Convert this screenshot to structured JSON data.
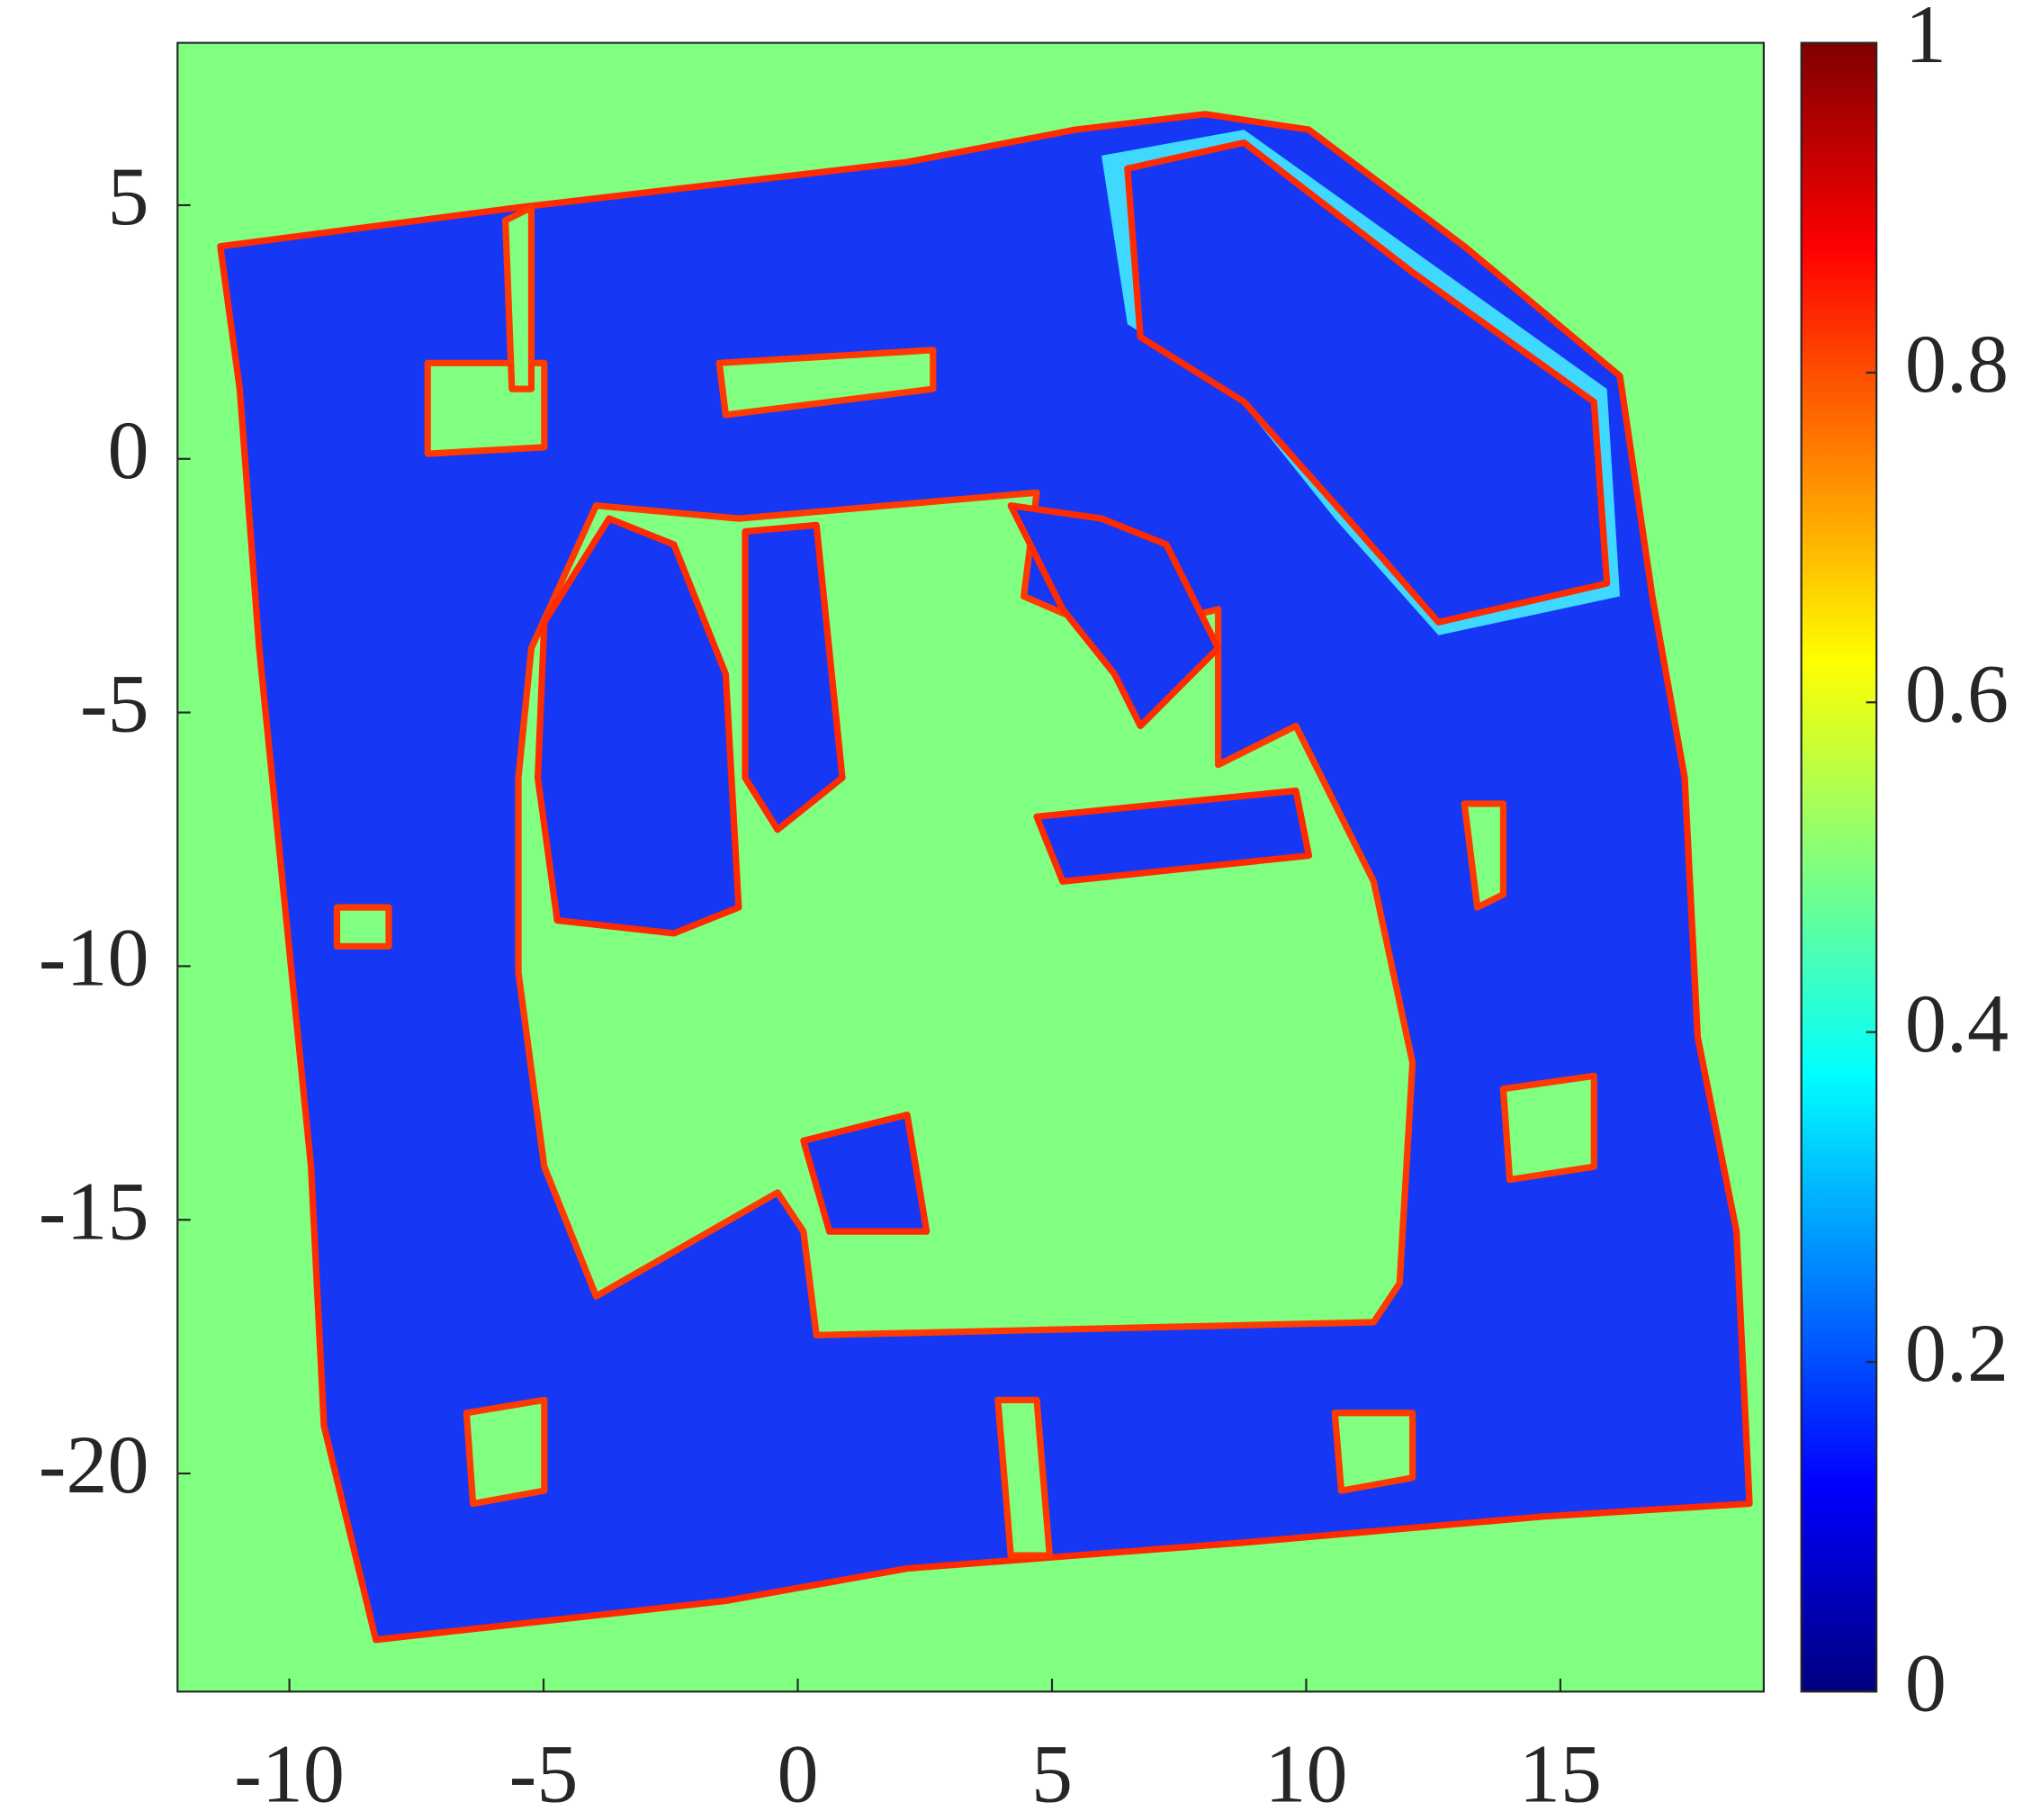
{
  "chart_data": {
    "type": "heatmap",
    "xlim": [
      -12.2,
      19
    ],
    "ylim": [
      -24.3,
      8.2
    ],
    "xticks": [
      -10,
      -5,
      0,
      5,
      10,
      15
    ],
    "yticks": [
      5,
      0,
      -5,
      -10,
      -15,
      -20
    ],
    "colorbar": {
      "colormap": "jet",
      "clim": [
        0,
        1
      ],
      "ticks": [
        0,
        0.2,
        0.4,
        0.6,
        0.8,
        1
      ]
    }
  }
}
